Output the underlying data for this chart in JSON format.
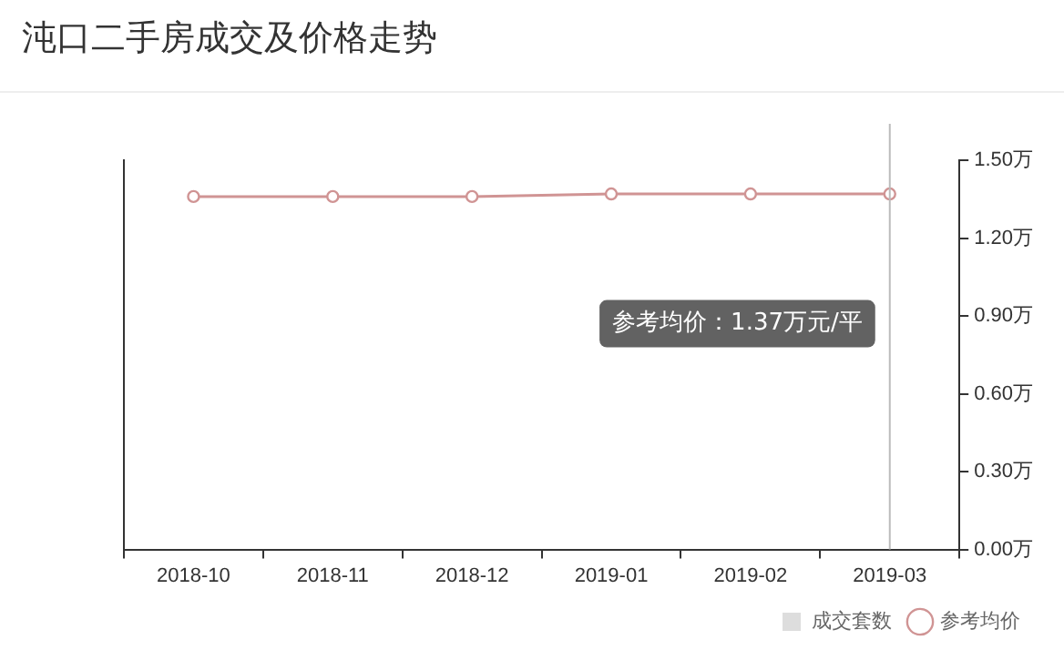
{
  "chart_data": {
    "type": "line",
    "title": "沌口二手房成交及价格走势",
    "categories": [
      "2018-10",
      "2018-11",
      "2018-12",
      "2019-01",
      "2019-02",
      "2019-03"
    ],
    "series": [
      {
        "name": "成交套数",
        "type": "bar",
        "color": "#dddddd",
        "values": [
          null,
          null,
          null,
          null,
          null,
          null
        ]
      },
      {
        "name": "参考均价",
        "color": "#d09494",
        "values": [
          1.36,
          1.36,
          1.36,
          1.37,
          1.37,
          1.37
        ]
      }
    ],
    "ylim": [
      0,
      1.5
    ],
    "yticks": [
      {
        "value": 0,
        "label": "0.00万"
      },
      {
        "value": 0.3,
        "label": "0.30万"
      },
      {
        "value": 0.6,
        "label": "0.60万"
      },
      {
        "value": 0.9,
        "label": "0.90万"
      },
      {
        "value": 1.2,
        "label": "1.20万"
      },
      {
        "value": 1.5,
        "label": "1.50万"
      }
    ],
    "grid": false,
    "legend": "bottom right",
    "marker": "circle",
    "ref_lines": [
      {
        "axis": "x",
        "value": "2019-03",
        "color": "#bbbbbb"
      }
    ],
    "annotations": [
      "参考均价：1.37万元/平"
    ]
  }
}
